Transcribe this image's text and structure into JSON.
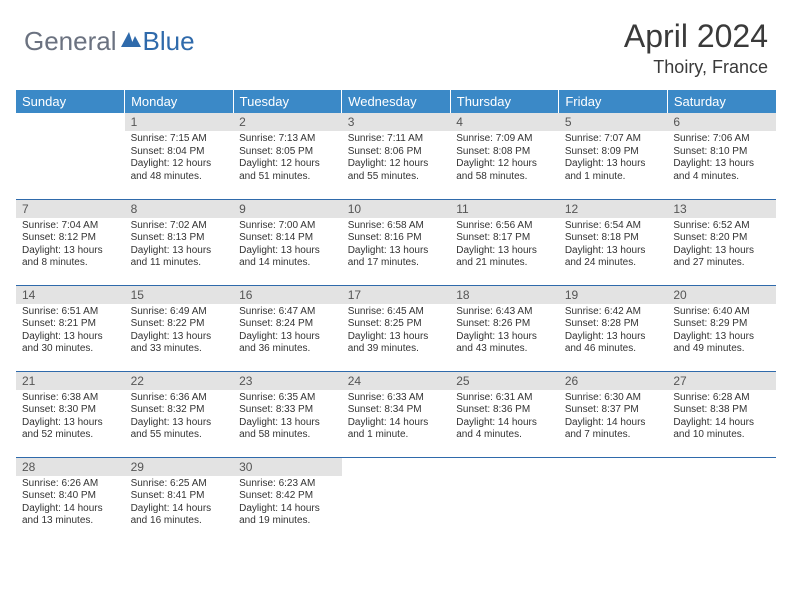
{
  "brand": {
    "part1": "General",
    "part2": "Blue"
  },
  "title": "April 2024",
  "location": "Thoiry, France",
  "colors": {
    "header_bg": "#3b89c7",
    "header_text": "#ffffff",
    "daynum_bg": "#e3e3e3",
    "row_border": "#2f6aab",
    "brand_gray": "#6b7280",
    "brand_blue": "#2f6aab"
  },
  "weekdays": [
    "Sunday",
    "Monday",
    "Tuesday",
    "Wednesday",
    "Thursday",
    "Friday",
    "Saturday"
  ],
  "weeks": [
    [
      {
        "n": "",
        "sr": "",
        "ss": "",
        "dl": ""
      },
      {
        "n": "1",
        "sr": "Sunrise: 7:15 AM",
        "ss": "Sunset: 8:04 PM",
        "dl": "Daylight: 12 hours and 48 minutes."
      },
      {
        "n": "2",
        "sr": "Sunrise: 7:13 AM",
        "ss": "Sunset: 8:05 PM",
        "dl": "Daylight: 12 hours and 51 minutes."
      },
      {
        "n": "3",
        "sr": "Sunrise: 7:11 AM",
        "ss": "Sunset: 8:06 PM",
        "dl": "Daylight: 12 hours and 55 minutes."
      },
      {
        "n": "4",
        "sr": "Sunrise: 7:09 AM",
        "ss": "Sunset: 8:08 PM",
        "dl": "Daylight: 12 hours and 58 minutes."
      },
      {
        "n": "5",
        "sr": "Sunrise: 7:07 AM",
        "ss": "Sunset: 8:09 PM",
        "dl": "Daylight: 13 hours and 1 minute."
      },
      {
        "n": "6",
        "sr": "Sunrise: 7:06 AM",
        "ss": "Sunset: 8:10 PM",
        "dl": "Daylight: 13 hours and 4 minutes."
      }
    ],
    [
      {
        "n": "7",
        "sr": "Sunrise: 7:04 AM",
        "ss": "Sunset: 8:12 PM",
        "dl": "Daylight: 13 hours and 8 minutes."
      },
      {
        "n": "8",
        "sr": "Sunrise: 7:02 AM",
        "ss": "Sunset: 8:13 PM",
        "dl": "Daylight: 13 hours and 11 minutes."
      },
      {
        "n": "9",
        "sr": "Sunrise: 7:00 AM",
        "ss": "Sunset: 8:14 PM",
        "dl": "Daylight: 13 hours and 14 minutes."
      },
      {
        "n": "10",
        "sr": "Sunrise: 6:58 AM",
        "ss": "Sunset: 8:16 PM",
        "dl": "Daylight: 13 hours and 17 minutes."
      },
      {
        "n": "11",
        "sr": "Sunrise: 6:56 AM",
        "ss": "Sunset: 8:17 PM",
        "dl": "Daylight: 13 hours and 21 minutes."
      },
      {
        "n": "12",
        "sr": "Sunrise: 6:54 AM",
        "ss": "Sunset: 8:18 PM",
        "dl": "Daylight: 13 hours and 24 minutes."
      },
      {
        "n": "13",
        "sr": "Sunrise: 6:52 AM",
        "ss": "Sunset: 8:20 PM",
        "dl": "Daylight: 13 hours and 27 minutes."
      }
    ],
    [
      {
        "n": "14",
        "sr": "Sunrise: 6:51 AM",
        "ss": "Sunset: 8:21 PM",
        "dl": "Daylight: 13 hours and 30 minutes."
      },
      {
        "n": "15",
        "sr": "Sunrise: 6:49 AM",
        "ss": "Sunset: 8:22 PM",
        "dl": "Daylight: 13 hours and 33 minutes."
      },
      {
        "n": "16",
        "sr": "Sunrise: 6:47 AM",
        "ss": "Sunset: 8:24 PM",
        "dl": "Daylight: 13 hours and 36 minutes."
      },
      {
        "n": "17",
        "sr": "Sunrise: 6:45 AM",
        "ss": "Sunset: 8:25 PM",
        "dl": "Daylight: 13 hours and 39 minutes."
      },
      {
        "n": "18",
        "sr": "Sunrise: 6:43 AM",
        "ss": "Sunset: 8:26 PM",
        "dl": "Daylight: 13 hours and 43 minutes."
      },
      {
        "n": "19",
        "sr": "Sunrise: 6:42 AM",
        "ss": "Sunset: 8:28 PM",
        "dl": "Daylight: 13 hours and 46 minutes."
      },
      {
        "n": "20",
        "sr": "Sunrise: 6:40 AM",
        "ss": "Sunset: 8:29 PM",
        "dl": "Daylight: 13 hours and 49 minutes."
      }
    ],
    [
      {
        "n": "21",
        "sr": "Sunrise: 6:38 AM",
        "ss": "Sunset: 8:30 PM",
        "dl": "Daylight: 13 hours and 52 minutes."
      },
      {
        "n": "22",
        "sr": "Sunrise: 6:36 AM",
        "ss": "Sunset: 8:32 PM",
        "dl": "Daylight: 13 hours and 55 minutes."
      },
      {
        "n": "23",
        "sr": "Sunrise: 6:35 AM",
        "ss": "Sunset: 8:33 PM",
        "dl": "Daylight: 13 hours and 58 minutes."
      },
      {
        "n": "24",
        "sr": "Sunrise: 6:33 AM",
        "ss": "Sunset: 8:34 PM",
        "dl": "Daylight: 14 hours and 1 minute."
      },
      {
        "n": "25",
        "sr": "Sunrise: 6:31 AM",
        "ss": "Sunset: 8:36 PM",
        "dl": "Daylight: 14 hours and 4 minutes."
      },
      {
        "n": "26",
        "sr": "Sunrise: 6:30 AM",
        "ss": "Sunset: 8:37 PM",
        "dl": "Daylight: 14 hours and 7 minutes."
      },
      {
        "n": "27",
        "sr": "Sunrise: 6:28 AM",
        "ss": "Sunset: 8:38 PM",
        "dl": "Daylight: 14 hours and 10 minutes."
      }
    ],
    [
      {
        "n": "28",
        "sr": "Sunrise: 6:26 AM",
        "ss": "Sunset: 8:40 PM",
        "dl": "Daylight: 14 hours and 13 minutes."
      },
      {
        "n": "29",
        "sr": "Sunrise: 6:25 AM",
        "ss": "Sunset: 8:41 PM",
        "dl": "Daylight: 14 hours and 16 minutes."
      },
      {
        "n": "30",
        "sr": "Sunrise: 6:23 AM",
        "ss": "Sunset: 8:42 PM",
        "dl": "Daylight: 14 hours and 19 minutes."
      },
      {
        "n": "",
        "sr": "",
        "ss": "",
        "dl": ""
      },
      {
        "n": "",
        "sr": "",
        "ss": "",
        "dl": ""
      },
      {
        "n": "",
        "sr": "",
        "ss": "",
        "dl": ""
      },
      {
        "n": "",
        "sr": "",
        "ss": "",
        "dl": ""
      }
    ]
  ]
}
